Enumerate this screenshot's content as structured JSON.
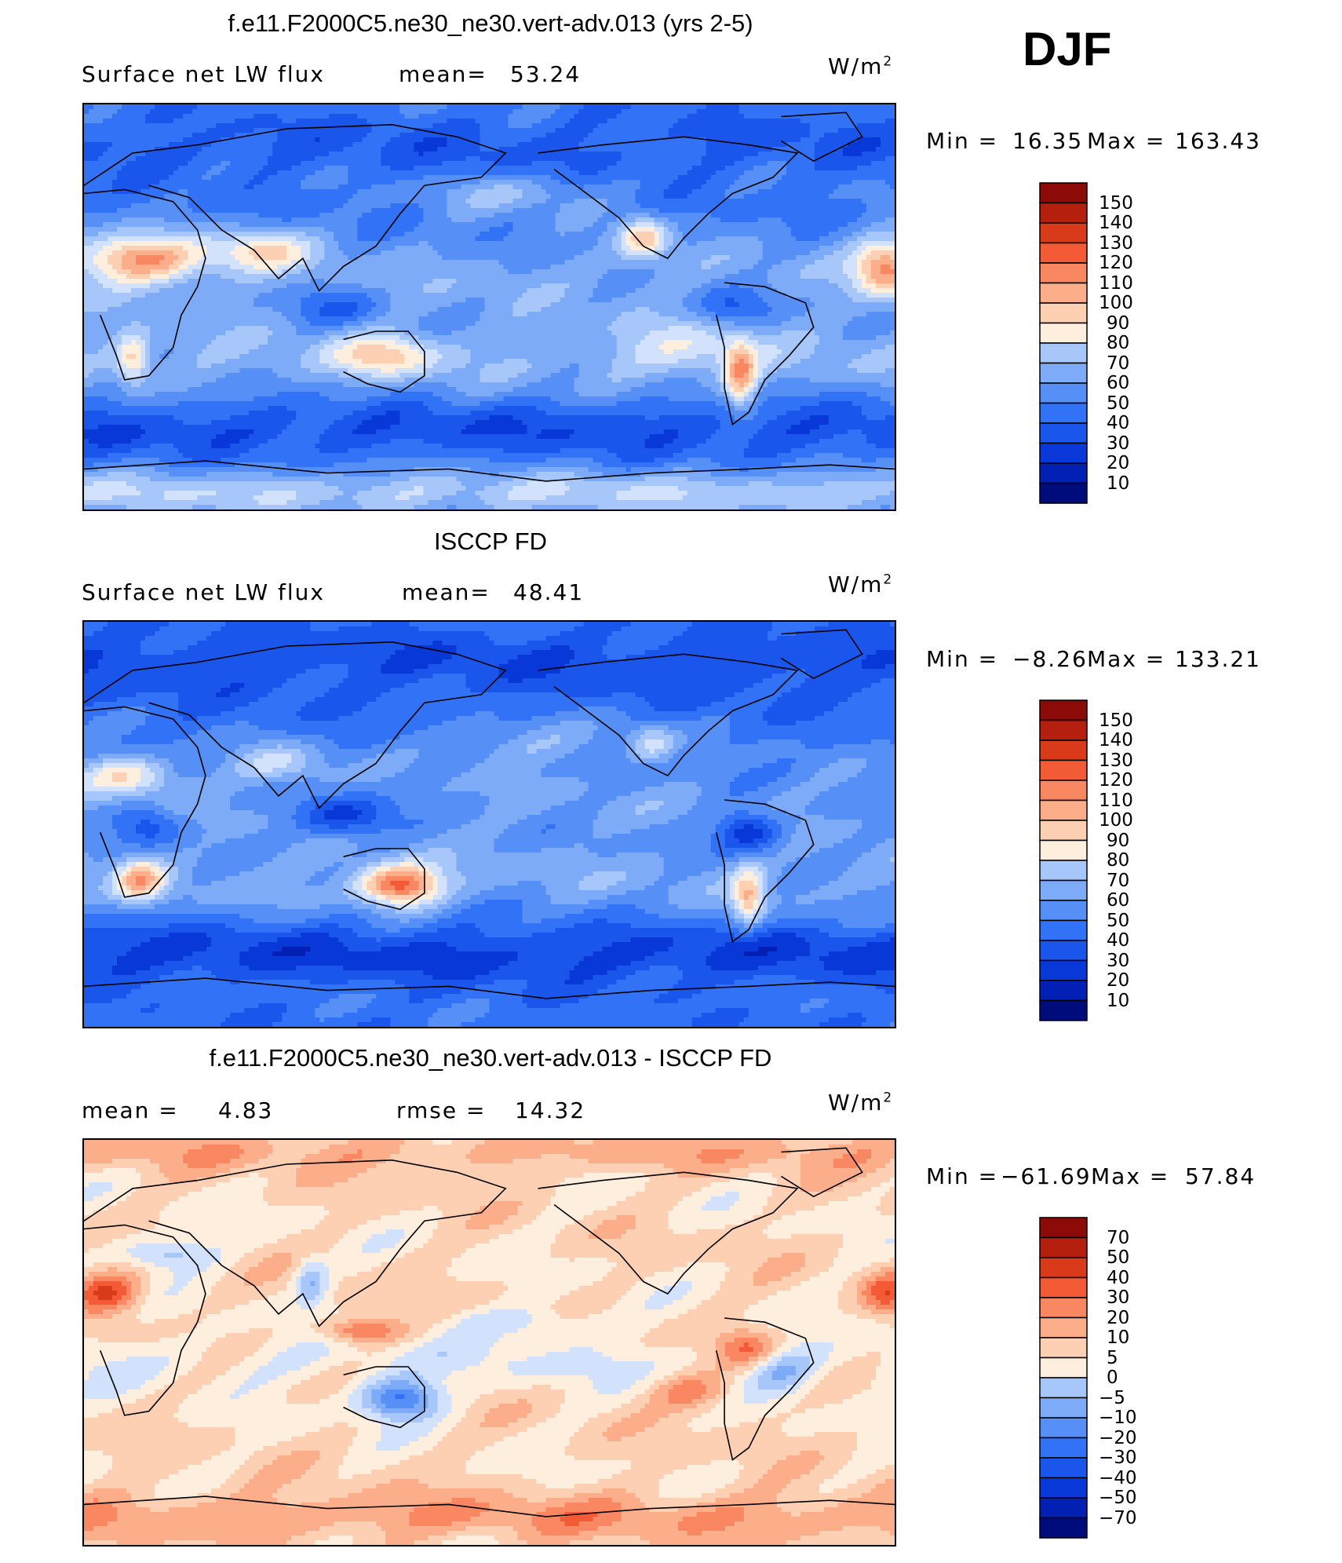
{
  "season": "DJF",
  "panels": [
    {
      "title": "f.e11.F2000C5.ne30_ne30.vert-adv.013 (yrs 2-5)",
      "left_label": "Surface net LW flux",
      "mid_label": "mean=",
      "mid_value": "53.24",
      "units_base": "W/m",
      "units_sup": "2",
      "min_label": "Min =",
      "min_value": "16.35",
      "max_label": "Max =",
      "max_value": "163.43",
      "colorbar": [
        "150",
        "140",
        "130",
        "120",
        "110",
        "100",
        "90",
        "80",
        "70",
        "60",
        "50",
        "40",
        "30",
        "20",
        "10"
      ],
      "kind": "model"
    },
    {
      "title": "ISCCP FD",
      "left_label": "Surface net LW flux",
      "mid_label": "mean=",
      "mid_value": "48.41",
      "units_base": "W/m",
      "units_sup": "2",
      "min_label": "Min =",
      "min_value": "−8.26",
      "max_label": "Max =",
      "max_value": "133.21",
      "colorbar": [
        "150",
        "140",
        "130",
        "120",
        "110",
        "100",
        "90",
        "80",
        "70",
        "60",
        "50",
        "40",
        "30",
        "20",
        "10"
      ],
      "kind": "obs"
    },
    {
      "title": "f.e11.F2000C5.ne30_ne30.vert-adv.013 - ISCCP FD",
      "left_label": "mean =",
      "left_value": "4.83",
      "mid_label": "rmse =",
      "mid_value": "14.32",
      "units_base": "W/m",
      "units_sup": "2",
      "min_label": "Min =",
      "min_value": "−61.69",
      "max_label": "Max =",
      "max_value": "57.84",
      "colorbar": [
        "70",
        "50",
        "40",
        "30",
        "20",
        "10",
        "5",
        "0",
        "−5",
        "−10",
        "−20",
        "−30",
        "−40",
        "−50",
        "−70"
      ],
      "kind": "diff"
    }
  ],
  "colors": {
    "scale": [
      "#000c7c",
      "#0320b4",
      "#0938d8",
      "#1a55ec",
      "#3272f6",
      "#5690f7",
      "#7eabf8",
      "#a7c6fa",
      "#d2e2fc",
      "#fdeede",
      "#fdd0b4",
      "#fcae8a",
      "#f98762",
      "#f25b36",
      "#d93a1a",
      "#b51f0d",
      "#8c0a08"
    ]
  },
  "chart_data": [
    {
      "type": "heatmap",
      "title": "f.e11.F2000C5.ne30_ne30.vert-adv.013 (yrs 2-5)",
      "variable": "Surface net LW flux",
      "units": "W/m2",
      "mean": 53.24,
      "min": 16.35,
      "max": 163.43,
      "levels": [
        10,
        20,
        30,
        40,
        50,
        60,
        70,
        80,
        90,
        100,
        110,
        120,
        130,
        140,
        150
      ]
    },
    {
      "type": "heatmap",
      "title": "ISCCP FD",
      "variable": "Surface net LW flux",
      "units": "W/m2",
      "mean": 48.41,
      "min": -8.26,
      "max": 133.21,
      "levels": [
        10,
        20,
        30,
        40,
        50,
        60,
        70,
        80,
        90,
        100,
        110,
        120,
        130,
        140,
        150
      ]
    },
    {
      "type": "heatmap",
      "title": "f.e11.F2000C5.ne30_ne30.vert-adv.013 - ISCCP FD",
      "units": "W/m2",
      "mean": 4.83,
      "rmse": 14.32,
      "min": -61.69,
      "max": 57.84,
      "levels": [
        -70,
        -50,
        -40,
        -30,
        -20,
        -10,
        -5,
        0,
        5,
        10,
        20,
        30,
        40,
        50,
        70
      ]
    }
  ]
}
